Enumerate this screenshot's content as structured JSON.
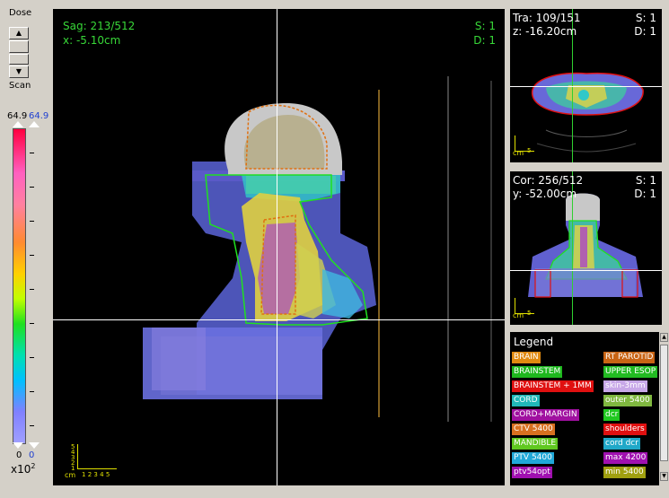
{
  "dose_panel": {
    "title": "Dose",
    "scan_label": "Scan",
    "max_left": "64.9",
    "max_right": "64.9",
    "min_left": "0",
    "min_right": "0",
    "multiplier": "x10",
    "multiplier_exp": "2"
  },
  "sagittal": {
    "slice": "Sag: 213/512",
    "position": "x: -5.10cm",
    "s": "S: 1",
    "d": "D: 1",
    "ruler_unit": "cm",
    "ruler_ticks": [
      "1",
      "2",
      "3",
      "4",
      "5"
    ]
  },
  "transverse": {
    "slice": "Tra: 109/151",
    "position": "z: -16.20cm",
    "s": "S: 1",
    "d": "D: 1",
    "ruler_unit": "cm",
    "ruler_tick": "5"
  },
  "coronal": {
    "slice": "Cor: 256/512",
    "position": "y: -52.00cm",
    "s": "S: 1",
    "d": "D: 1",
    "ruler_unit": "cm",
    "ruler_tick": "5"
  },
  "legend": {
    "title": "Legend",
    "items": [
      {
        "label": "BRAIN",
        "color": "#e08a10"
      },
      {
        "label": "RT PAROTID",
        "color": "#c86414"
      },
      {
        "label": "BRAINSTEM",
        "color": "#1eb81e"
      },
      {
        "label": "UPPER ESOP",
        "color": "#22bb22"
      },
      {
        "label": "BRAINSTEM + 1MM",
        "color": "#e01010"
      },
      {
        "label": "skin-3mm",
        "color": "#c8a8e8"
      },
      {
        "label": "CORD",
        "color": "#20b8b8"
      },
      {
        "label": "outer 5400",
        "color": "#80b840"
      },
      {
        "label": "CORD+MARGIN",
        "color": "#a010a0"
      },
      {
        "label": "dcr",
        "color": "#20c820"
      },
      {
        "label": "CTV 5400",
        "color": "#d87020"
      },
      {
        "label": "shoulders",
        "color": "#e01010"
      },
      {
        "label": "MANDIBLE",
        "color": "#60c820"
      },
      {
        "label": "cord dcr",
        "color": "#20a8c8"
      },
      {
        "label": "PTV 5400",
        "color": "#20a8d8"
      },
      {
        "label": "max 4200",
        "color": "#a010b0"
      },
      {
        "label": "ptv54opt",
        "color": "#a010b0"
      },
      {
        "label": "min 5400",
        "color": "#a0a010"
      }
    ]
  }
}
